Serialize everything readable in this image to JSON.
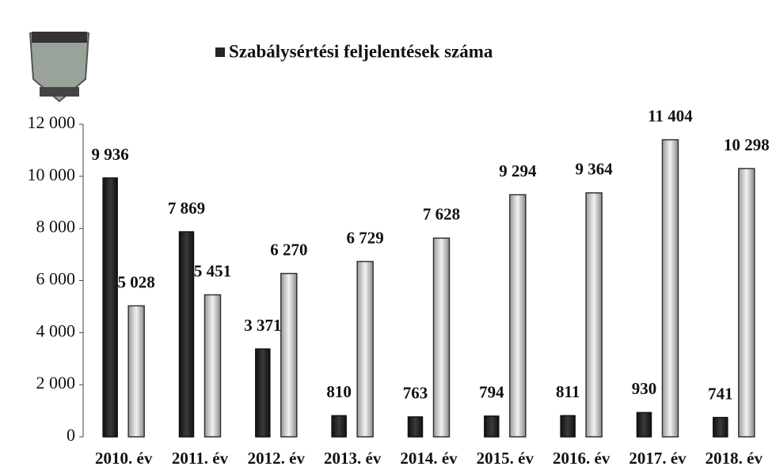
{
  "chart_data": {
    "type": "bar",
    "title": "Szabálysértési feljelentések száma",
    "categories": [
      "2010. év",
      "2011. év",
      "2012. év",
      "2013. év",
      "2014. év",
      "2015. év",
      "2016. év",
      "2017. év",
      "2018. év"
    ],
    "series": [
      {
        "name": "Szabálysértési feljelentések száma",
        "color": "#262626",
        "values": [
          9936,
          7869,
          3371,
          810,
          763,
          794,
          811,
          930,
          741
        ],
        "value_labels": [
          "9 936",
          "7 869",
          "3 371",
          "810",
          "763",
          "794",
          "811",
          "930",
          "741"
        ]
      },
      {
        "color": "#d9d9d9",
        "values": [
          5028,
          5451,
          6270,
          6729,
          7628,
          9294,
          9364,
          11404,
          10298
        ],
        "value_labels": [
          "5 028",
          "5 451",
          "6 270",
          "6 729",
          "7 628",
          "9 294",
          "9 364",
          "11 404",
          "10 298"
        ]
      }
    ],
    "ylim": [
      0,
      12000
    ],
    "yticks": [
      {
        "value": 0,
        "label": "0"
      },
      {
        "value": 2000,
        "label": "2 000"
      },
      {
        "value": 4000,
        "label": "4 000"
      },
      {
        "value": 6000,
        "label": "6 000"
      },
      {
        "value": 8000,
        "label": "8 000"
      },
      {
        "value": 10000,
        "label": "10 000"
      },
      {
        "value": 12000,
        "label": "12 000"
      }
    ],
    "legend": "top"
  }
}
